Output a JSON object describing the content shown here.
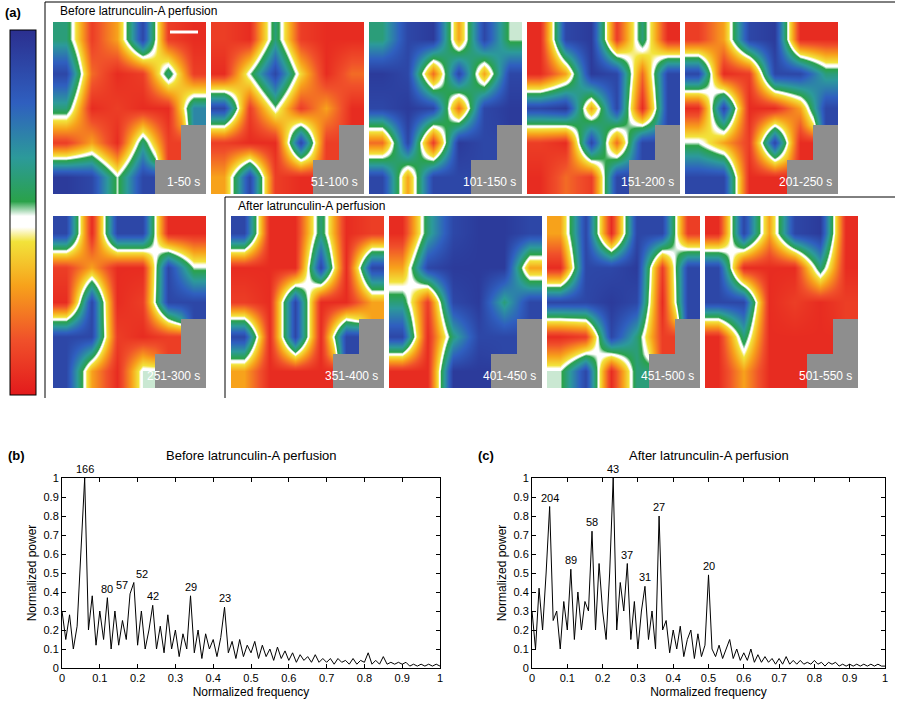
{
  "chart_data": [
    {
      "type": "heatmap",
      "panel": "(a)",
      "tick_labels": false,
      "colorscale": [
        [
          0,
          "#e31a1c"
        ],
        [
          0.15,
          "#f0502a"
        ],
        [
          0.3,
          "#f7a21b"
        ],
        [
          0.42,
          "#f2e33a"
        ],
        [
          0.46,
          "#ffffff"
        ],
        [
          0.49,
          "#ffffff"
        ],
        [
          0.53,
          "#2aa24a"
        ],
        [
          0.65,
          "#2c9a9a"
        ],
        [
          0.8,
          "#2f5fbf"
        ],
        [
          1,
          "#2b2f8f"
        ]
      ],
      "zlim": [
        0,
        1
      ],
      "groups": [
        {
          "title": "Before latrunculin-A perfusion",
          "tiles": [
            {
              "label": "1-50 s",
              "z": [
                [
                  0.6,
                  0.1,
                  0.3,
                  0.9,
                  0.1,
                  0.05
                ],
                [
                  0.9,
                  0.2,
                  0.05,
                  0.1,
                  0.6,
                  0.1
                ],
                [
                  0.6,
                  0.05,
                  0.1,
                  0.05,
                  0.05,
                  0.7
                ],
                [
                  0.1,
                  0.3,
                  0.05,
                  0.6,
                  0.1,
                  null
                ],
                [
                  0.95,
                  0.9,
                  0.5,
                  0.9,
                  null,
                  null
                ]
              ]
            },
            {
              "label": "51-100 s",
              "z": [
                [
                  0.1,
                  0.05,
                  0.6,
                  0.1,
                  0.05,
                  0.05
                ],
                [
                  0.05,
                  0.5,
                  0.9,
                  0.4,
                  0.05,
                  0.2
                ],
                [
                  0.9,
                  0.1,
                  0.5,
                  0.1,
                  0.3,
                  0.05
                ],
                [
                  0.1,
                  0.05,
                  0.05,
                  0.9,
                  0.1,
                  null
                ],
                [
                  0.3,
                  0.9,
                  0.1,
                  0.05,
                  null,
                  null
                ]
              ]
            },
            {
              "label": "101-150 s",
              "z": [
                [
                  0.6,
                  0.9,
                  0.95,
                  0.3,
                  0.9,
                  0.5
                ],
                [
                  0.95,
                  0.9,
                  0.2,
                  0.9,
                  0.3,
                  0.9
                ],
                [
                  0.9,
                  0.95,
                  0.9,
                  0.2,
                  0.9,
                  0.95
                ],
                [
                  0.2,
                  0.9,
                  0.1,
                  0.95,
                  0.9,
                  null
                ],
                [
                  0.9,
                  0.3,
                  0.9,
                  0.9,
                  null,
                  null
                ]
              ]
            },
            {
              "label": "151-200 s",
              "z": [
                [
                  0.05,
                  0.9,
                  0.95,
                  0.1,
                  0.6,
                  0.05
                ],
                [
                  0.05,
                  0.3,
                  0.95,
                  0.9,
                  0.2,
                  0.9
                ],
                [
                  0.9,
                  0.95,
                  0.3,
                  0.9,
                  0.05,
                  0.9
                ],
                [
                  0.1,
                  0.05,
                  0.9,
                  0.2,
                  0.9,
                  null
                ],
                [
                  0.05,
                  0.2,
                  0.1,
                  0.9,
                  null,
                  null
                ]
              ]
            },
            {
              "label": "201-250 s",
              "z": [
                [
                  0.1,
                  0.3,
                  0.9,
                  0.95,
                  0.05,
                  0.05
                ],
                [
                  0.9,
                  0.05,
                  0.1,
                  0.9,
                  0.9,
                  0.6
                ],
                [
                  0.05,
                  0.9,
                  0.05,
                  0.05,
                  0.3,
                  0.9
                ],
                [
                  0.5,
                  0.3,
                  0.1,
                  0.9,
                  0.05,
                  null
                ],
                [
                  0.9,
                  0.9,
                  0.05,
                  0.05,
                  null,
                  null
                ]
              ]
            },
            {
              "label": "251-300 s",
              "z": [
                [
                  0.9,
                  0.05,
                  0.9,
                  0.9,
                  0.05,
                  0.05
                ],
                [
                  0.1,
                  0.3,
                  0.05,
                  0.05,
                  0.9,
                  0.5
                ],
                [
                  0.05,
                  0.9,
                  0.05,
                  0.1,
                  0.9,
                  0.9
                ],
                [
                  0.9,
                  0.9,
                  0.1,
                  0.05,
                  0.1,
                  null
                ],
                [
                  0.9,
                  0.3,
                  0.05,
                  0.5,
                  null,
                  null
                ]
              ]
            }
          ]
        },
        {
          "title": "After latrunculin-A perfusion",
          "tiles": [
            {
              "label": "351-400 s",
              "z": [
                [
                  0.9,
                  0.05,
                  0.05,
                  0.6,
                  0.05,
                  0.1
                ],
                [
                  0.05,
                  0.05,
                  0.05,
                  0.9,
                  0.05,
                  0.9
                ],
                [
                  0.1,
                  0.05,
                  0.9,
                  0.05,
                  0.05,
                  0.3
                ],
                [
                  0.9,
                  0.05,
                  0.9,
                  0.05,
                  0.9,
                  null
                ],
                [
                  0.3,
                  0.05,
                  0.05,
                  0.05,
                  null,
                  null
                ]
              ]
            },
            {
              "label": "401-450 s",
              "z": [
                [
                  0.05,
                  0.6,
                  0.9,
                  0.95,
                  0.95,
                  0.9
                ],
                [
                  0.3,
                  0.9,
                  0.95,
                  0.95,
                  0.95,
                  0.3
                ],
                [
                  0.6,
                  0.1,
                  0.9,
                  0.95,
                  0.6,
                  0.9
                ],
                [
                  0.9,
                  0.05,
                  0.6,
                  0.9,
                  0.9,
                  null
                ],
                [
                  0.05,
                  0.05,
                  0.95,
                  0.95,
                  null,
                  null
                ]
              ]
            },
            {
              "label": "451-500 s",
              "z": [
                [
                  0.3,
                  0.9,
                  0.05,
                  0.9,
                  0.9,
                  0.1
                ],
                [
                  0.05,
                  0.9,
                  0.9,
                  0.95,
                  0.1,
                  0.9
                ],
                [
                  0.9,
                  0.9,
                  0.95,
                  0.9,
                  0.05,
                  0.9
                ],
                [
                  0.05,
                  0.1,
                  0.9,
                  0.6,
                  0.1,
                  null
                ],
                [
                  0.5,
                  0.9,
                  0.05,
                  0.6,
                  null,
                  null
                ]
              ]
            },
            {
              "label": "501-550 s",
              "z": [
                [
                  0.05,
                  0.9,
                  0.3,
                  0.9,
                  0.95,
                  0.05
                ],
                [
                  0.9,
                  0.05,
                  0.05,
                  0.05,
                  0.6,
                  0.05
                ],
                [
                  0.9,
                  0.9,
                  0.05,
                  0.1,
                  0.05,
                  0.1
                ],
                [
                  0.05,
                  0.6,
                  0.05,
                  0.05,
                  0.05,
                  null
                ],
                [
                  0.05,
                  0.3,
                  0.05,
                  0.05,
                  null,
                  null
                ]
              ]
            }
          ]
        }
      ]
    },
    {
      "type": "line",
      "panel": "(b)",
      "title": "Before latrunculin-A perfusion",
      "x_label": "Normalized frequency",
      "y_label": "Normalized power",
      "color": "#000000",
      "xlim": [
        0,
        1
      ],
      "ylim": [
        0,
        1
      ],
      "xticks": [
        0,
        0.1,
        0.2,
        0.3,
        0.4,
        0.5,
        0.6,
        0.7,
        0.8,
        0.9,
        1
      ],
      "yticks": [
        0,
        0.1,
        0.2,
        0.3,
        0.4,
        0.5,
        0.6,
        0.7,
        0.8,
        0.9,
        1
      ],
      "x": [
        0,
        0.01,
        0.02,
        0.03,
        0.04,
        0.05,
        0.06,
        0.07,
        0.08,
        0.09,
        0.1,
        0.11,
        0.12,
        0.13,
        0.14,
        0.15,
        0.16,
        0.17,
        0.18,
        0.19,
        0.2,
        0.21,
        0.22,
        0.23,
        0.24,
        0.25,
        0.26,
        0.27,
        0.28,
        0.29,
        0.3,
        0.31,
        0.32,
        0.33,
        0.34,
        0.35,
        0.36,
        0.37,
        0.38,
        0.39,
        0.4,
        0.41,
        0.42,
        0.43,
        0.44,
        0.45,
        0.46,
        0.47,
        0.48,
        0.49,
        0.5,
        0.51,
        0.52,
        0.53,
        0.54,
        0.55,
        0.56,
        0.57,
        0.58,
        0.59,
        0.6,
        0.61,
        0.62,
        0.63,
        0.64,
        0.65,
        0.66,
        0.67,
        0.68,
        0.69,
        0.7,
        0.71,
        0.72,
        0.73,
        0.74,
        0.75,
        0.76,
        0.77,
        0.78,
        0.79,
        0.8,
        0.81,
        0.82,
        0.83,
        0.84,
        0.85,
        0.86,
        0.87,
        0.88,
        0.89,
        0.9,
        0.91,
        0.92,
        0.93,
        0.94,
        0.95,
        0.96,
        0.97,
        0.98,
        0.99,
        1
      ],
      "values": [
        0.3,
        0.15,
        0.28,
        0.1,
        0.22,
        0.64,
        1.0,
        0.2,
        0.38,
        0.12,
        0.3,
        0.15,
        0.37,
        0.1,
        0.3,
        0.12,
        0.25,
        0.15,
        0.39,
        0.45,
        0.12,
        0.3,
        0.1,
        0.2,
        0.33,
        0.1,
        0.22,
        0.08,
        0.28,
        0.1,
        0.2,
        0.06,
        0.18,
        0.1,
        0.38,
        0.08,
        0.2,
        0.05,
        0.18,
        0.1,
        0.15,
        0.06,
        0.16,
        0.32,
        0.08,
        0.14,
        0.05,
        0.15,
        0.06,
        0.12,
        0.08,
        0.14,
        0.05,
        0.12,
        0.06,
        0.1,
        0.04,
        0.11,
        0.05,
        0.09,
        0.04,
        0.08,
        0.03,
        0.07,
        0.04,
        0.06,
        0.03,
        0.07,
        0.03,
        0.05,
        0.03,
        0.05,
        0.02,
        0.05,
        0.03,
        0.04,
        0.02,
        0.05,
        0.02,
        0.04,
        0.03,
        0.08,
        0.02,
        0.04,
        0.02,
        0.06,
        0.02,
        0.03,
        0.02,
        0.03,
        0.02,
        0.03,
        0.01,
        0.02,
        0.01,
        0.02,
        0.01,
        0.02,
        0.01,
        0.02,
        0.01
      ],
      "peak_labels": [
        {
          "x": 0.06,
          "y": 1.0,
          "text": "166"
        },
        {
          "x": 0.12,
          "y": 0.37,
          "text": "80"
        },
        {
          "x": 0.18,
          "y": 0.39,
          "text": "57"
        },
        {
          "x": 0.19,
          "y": 0.45,
          "text": "52"
        },
        {
          "x": 0.24,
          "y": 0.33,
          "text": "42"
        },
        {
          "x": 0.34,
          "y": 0.38,
          "text": "29"
        },
        {
          "x": 0.43,
          "y": 0.32,
          "text": "23"
        }
      ]
    },
    {
      "type": "line",
      "panel": "(c)",
      "title": "After latrunculin-A perfusion",
      "x_label": "Normalized frequency",
      "y_label": "Normalized power",
      "color": "#000000",
      "xlim": [
        0,
        1
      ],
      "ylim": [
        0,
        1
      ],
      "xticks": [
        0,
        0.1,
        0.2,
        0.3,
        0.4,
        0.5,
        0.6,
        0.7,
        0.8,
        0.9,
        1
      ],
      "yticks": [
        0,
        0.1,
        0.2,
        0.3,
        0.4,
        0.5,
        0.6,
        0.7,
        0.8,
        0.9,
        1
      ],
      "x": [
        0,
        0.01,
        0.02,
        0.03,
        0.04,
        0.05,
        0.06,
        0.07,
        0.08,
        0.09,
        0.1,
        0.11,
        0.12,
        0.13,
        0.14,
        0.15,
        0.16,
        0.17,
        0.18,
        0.19,
        0.2,
        0.21,
        0.22,
        0.23,
        0.24,
        0.25,
        0.26,
        0.27,
        0.28,
        0.29,
        0.3,
        0.31,
        0.32,
        0.33,
        0.34,
        0.35,
        0.36,
        0.37,
        0.38,
        0.39,
        0.4,
        0.41,
        0.42,
        0.43,
        0.44,
        0.45,
        0.46,
        0.47,
        0.48,
        0.49,
        0.5,
        0.51,
        0.52,
        0.53,
        0.54,
        0.55,
        0.56,
        0.57,
        0.58,
        0.59,
        0.6,
        0.61,
        0.62,
        0.63,
        0.64,
        0.65,
        0.66,
        0.67,
        0.68,
        0.69,
        0.7,
        0.71,
        0.72,
        0.73,
        0.74,
        0.75,
        0.76,
        0.77,
        0.78,
        0.79,
        0.8,
        0.81,
        0.82,
        0.83,
        0.84,
        0.85,
        0.86,
        0.87,
        0.88,
        0.89,
        0.9,
        0.91,
        0.92,
        0.93,
        0.94,
        0.95,
        0.96,
        0.97,
        0.98,
        0.99,
        1
      ],
      "values": [
        0.3,
        0.1,
        0.42,
        0.2,
        0.5,
        0.85,
        0.25,
        0.3,
        0.1,
        0.35,
        0.2,
        0.52,
        0.15,
        0.4,
        0.2,
        0.35,
        0.3,
        0.72,
        0.2,
        0.55,
        0.3,
        0.15,
        0.5,
        1.0,
        0.2,
        0.45,
        0.3,
        0.55,
        0.15,
        0.35,
        0.1,
        0.3,
        0.43,
        0.15,
        0.3,
        0.1,
        0.8,
        0.2,
        0.25,
        0.08,
        0.2,
        0.1,
        0.22,
        0.06,
        0.15,
        0.2,
        0.05,
        0.18,
        0.06,
        0.12,
        0.49,
        0.1,
        0.06,
        0.12,
        0.05,
        0.1,
        0.15,
        0.05,
        0.1,
        0.04,
        0.08,
        0.04,
        0.1,
        0.03,
        0.07,
        0.03,
        0.06,
        0.03,
        0.05,
        0.02,
        0.05,
        0.02,
        0.06,
        0.02,
        0.04,
        0.02,
        0.04,
        0.02,
        0.03,
        0.02,
        0.04,
        0.02,
        0.03,
        0.01,
        0.03,
        0.02,
        0.03,
        0.01,
        0.02,
        0.01,
        0.02,
        0.01,
        0.02,
        0.01,
        0.02,
        0.01,
        0.02,
        0.01,
        0.02,
        0.01,
        0.01
      ],
      "peak_labels": [
        {
          "x": 0.05,
          "y": 0.85,
          "text": "204"
        },
        {
          "x": 0.11,
          "y": 0.52,
          "text": "89"
        },
        {
          "x": 0.17,
          "y": 0.72,
          "text": "58"
        },
        {
          "x": 0.23,
          "y": 1.0,
          "text": "43"
        },
        {
          "x": 0.27,
          "y": 0.55,
          "text": "37"
        },
        {
          "x": 0.32,
          "y": 0.43,
          "text": "31"
        },
        {
          "x": 0.36,
          "y": 0.8,
          "text": "27"
        },
        {
          "x": 0.5,
          "y": 0.49,
          "text": "20"
        }
      ]
    }
  ]
}
